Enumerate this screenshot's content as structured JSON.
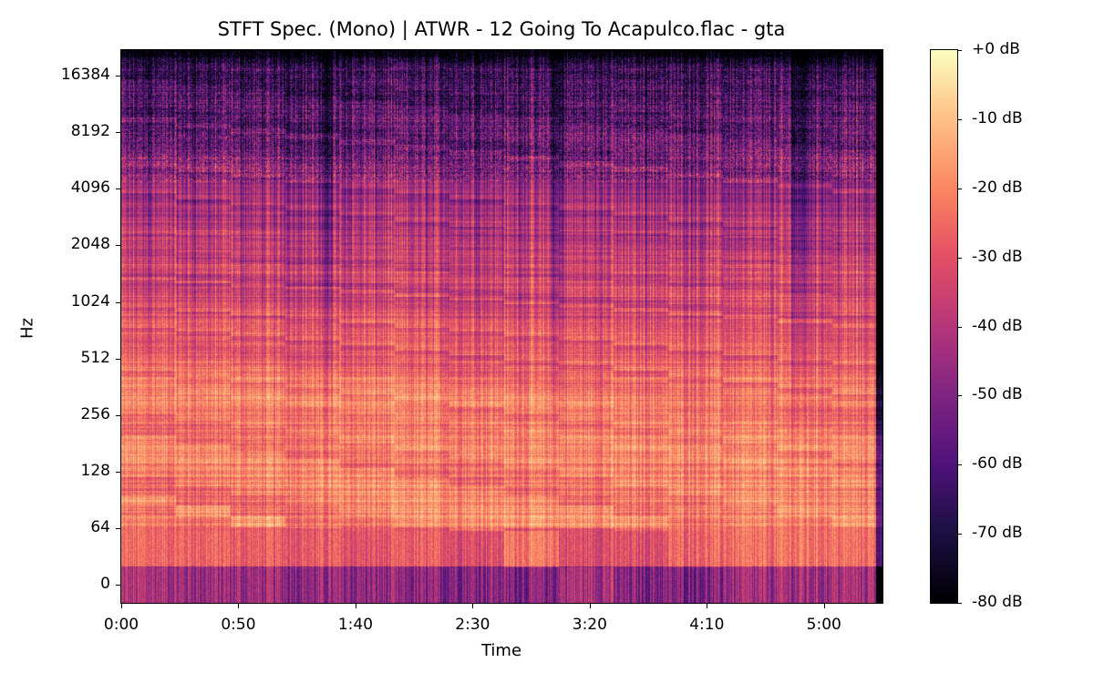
{
  "chart_data": {
    "type": "heatmap",
    "title": "STFT Spec. (Mono) | ATWR - 12 Going To Acapulco.flac - gta",
    "xlabel": "Time",
    "ylabel": "Hz",
    "x_ticks": [
      "0:00",
      "0:50",
      "1:40",
      "2:30",
      "3:20",
      "4:10",
      "5:00"
    ],
    "x_tick_seconds": [
      0,
      50,
      100,
      150,
      200,
      250,
      300
    ],
    "xlim_seconds": [
      0,
      325
    ],
    "y_scale": "log",
    "y_ticks": [
      "0",
      "64",
      "128",
      "256",
      "512",
      "1024",
      "2048",
      "4096",
      "8192",
      "16384"
    ],
    "ylim_hz": [
      0,
      22050
    ],
    "colormap": "magma",
    "colorbar": {
      "range_db": [
        -80,
        0
      ],
      "ticks": [
        "+0 dB",
        "-10 dB",
        "-20 dB",
        "-30 dB",
        "-40 dB",
        "-50 dB",
        "-60 dB",
        "-70 dB",
        "-80 dB"
      ]
    },
    "colors": {
      "low": "#000004",
      "mid": "#b73779",
      "high": "#fcfdbf"
    }
  }
}
